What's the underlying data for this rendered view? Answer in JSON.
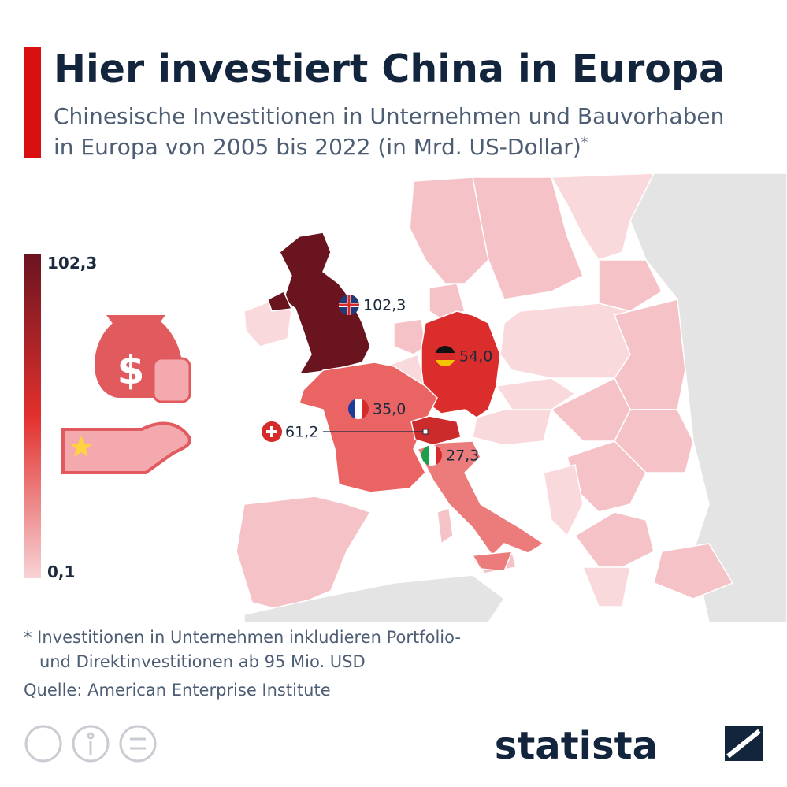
{
  "header": {
    "title": "Hier investiert China in Europa",
    "subtitle": [
      "Chinesische Investitionen in Unternehmen und Bauvorhaben",
      "in Europa von 2005 bis 2022 (in Mrd. US-Dollar)"
    ],
    "subtitle_mark": "*"
  },
  "legend": {
    "max": {
      "value": 102.3,
      "label": "102,3"
    },
    "min": {
      "value": 0.1,
      "label": "0,1"
    },
    "colors": [
      "#f7d3d6",
      "#e2302d",
      "#6a1420"
    ]
  },
  "countries": [
    {
      "value": 102.3,
      "label": "102,3"
    },
    {
      "value": 54.0,
      "label": "54,0"
    },
    {
      "value": 35.0,
      "label": "35,0"
    },
    {
      "value": 61.2,
      "label": "61,2"
    },
    {
      "value": 27.3,
      "label": "27,3"
    }
  ],
  "footer": {
    "note": [
      "* Investitionen in Unternehmen inkludieren Portfolio-",
      "und Direktinvestitionen ab 95 Mio. USD"
    ],
    "source": "Quelle: American Enterprise Institute",
    "brand": "statista"
  }
}
